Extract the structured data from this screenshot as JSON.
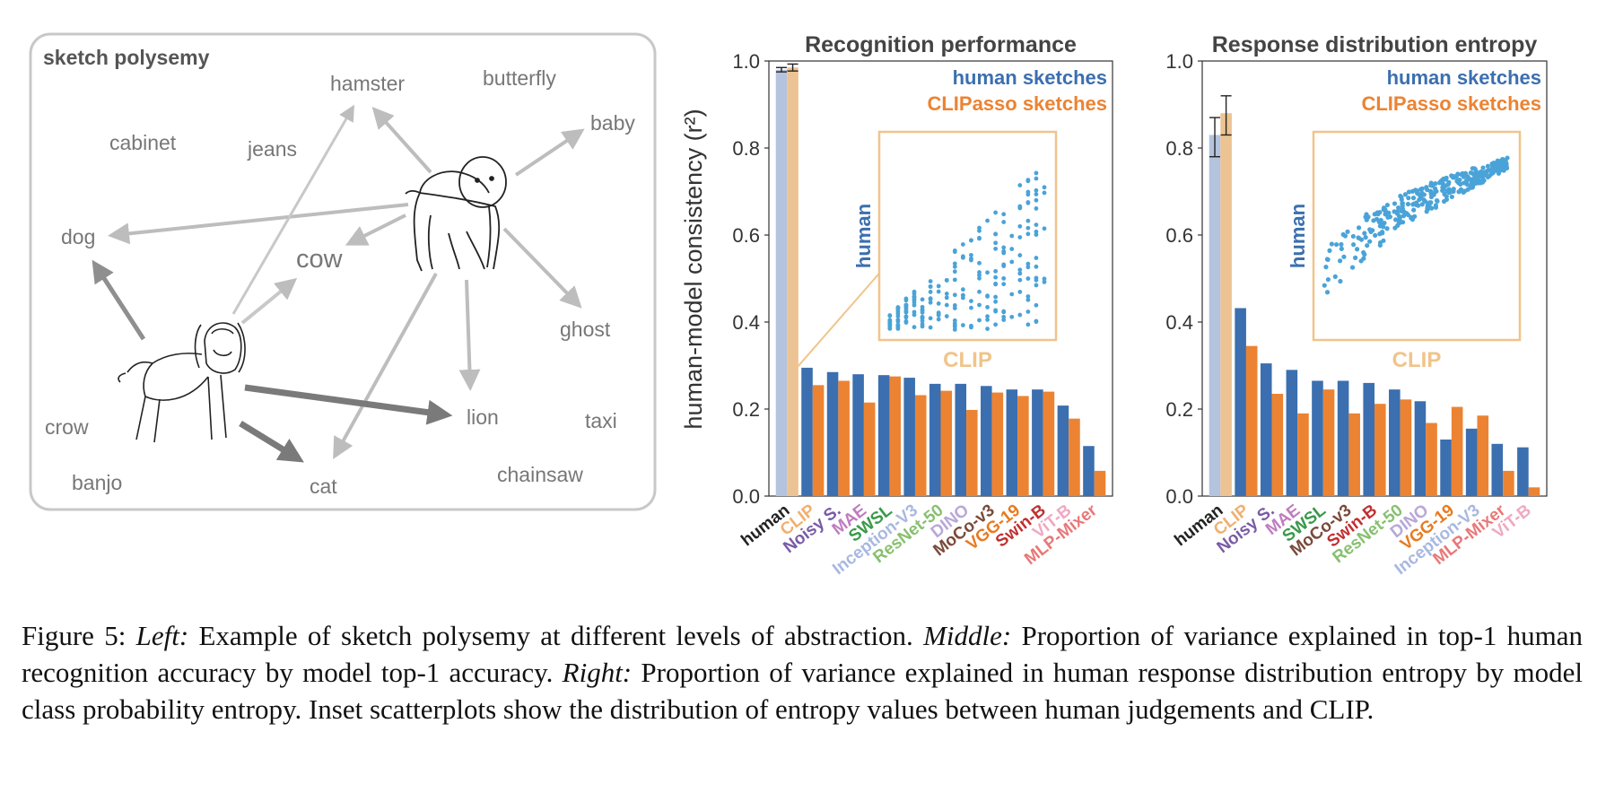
{
  "figure_label": "Figure 5:",
  "caption_parts": [
    {
      "text": "Left:",
      "italic": true
    },
    {
      "text": " Example of sketch polysemy at different levels of abstraction. ",
      "italic": false
    },
    {
      "text": "Middle:",
      "italic": true
    },
    {
      "text": " Proportion of variance explained in top-1 human recognition accuracy by model top-1 accuracy. ",
      "italic": false
    },
    {
      "text": "Right:",
      "italic": true
    },
    {
      "text": " Proportion of variance explained in human response distribution entropy by model class probability entropy. Inset scatterplots show the distribution of entropy values between human judgements and CLIP.",
      "italic": false
    }
  ],
  "left_panel": {
    "title": "sketch polysemy",
    "words": [
      "hamster",
      "butterfly",
      "baby",
      "cabinet",
      "jeans",
      "dog",
      "cow",
      "ghost",
      "lion",
      "taxi",
      "crow",
      "banjo",
      "cat",
      "chainsaw"
    ]
  },
  "colors": {
    "human": "#3b6fb0",
    "clipasso": "#ec8332",
    "human_light": "#b4c3de",
    "clip_light": "#ecc392",
    "scatter": "#4aa3d8",
    "inset_border": "#f0c48a",
    "text_gray": "#777777"
  },
  "shared": {
    "ylabel": "human-model consistency (r²)",
    "yticks": [
      "0.0",
      "0.2",
      "0.4",
      "0.6",
      "0.8",
      "1.0"
    ],
    "legend": [
      "human sketches",
      "CLIPasso sketches"
    ],
    "inset_xlabel": "CLIP",
    "inset_ylabel": "human"
  },
  "chart_data": [
    {
      "type": "bar",
      "title": "Recognition performance",
      "ylabel": "human-model consistency (r²)",
      "ylim": [
        0,
        1.0
      ],
      "categories": [
        "human",
        "CLIP",
        "Noisy S.",
        "MAE",
        "SWSL",
        "Inception-V3",
        "ResNet-50",
        "DINO",
        "MoCo-v3",
        "VGG-19",
        "Swin-B",
        "ViT-B",
        "MLP-Mixer"
      ],
      "category_colors": [
        "#222222",
        "#f0b070",
        "#7a5aa6",
        "#c07cc0",
        "#3a9a4a",
        "#a8b8e0",
        "#88c070",
        "#b8a8d8",
        "#7a4a3a",
        "#e87a20",
        "#c03030",
        "#f0a8c0",
        "#e87878"
      ],
      "series": [
        {
          "name": "human sketches",
          "values": [
            0.98,
            0.295,
            0.285,
            0.28,
            0.278,
            0.272,
            0.258,
            0.258,
            0.253,
            0.245,
            0.245,
            0.208,
            0.115
          ]
        },
        {
          "name": "CLIPasso sketches",
          "values": [
            0.985,
            0.255,
            0.265,
            0.215,
            0.275,
            0.232,
            0.242,
            0.198,
            0.238,
            0.23,
            0.24,
            0.178,
            0.058
          ]
        }
      ],
      "error_bars": {
        "human": [
          0.975,
          0.985
        ],
        "CLIPasso": [
          0.977,
          0.993
        ]
      }
    },
    {
      "type": "bar",
      "title": "Response distribution entropy",
      "ylim": [
        0,
        1.0
      ],
      "categories": [
        "human",
        "CLIP",
        "Noisy S.",
        "MAE",
        "SWSL",
        "MoCo-v3",
        "Swin-B",
        "ResNet-50",
        "DINO",
        "VGG-19",
        "Inception-V3",
        "MLP-Mixer",
        "ViT-B"
      ],
      "category_colors": [
        "#222222",
        "#f0b070",
        "#7a5aa6",
        "#c07cc0",
        "#3a9a4a",
        "#7a4a3a",
        "#c03030",
        "#88c070",
        "#b8a8d8",
        "#e87a20",
        "#a8b8e0",
        "#e87878",
        "#f0a8c0"
      ],
      "series": [
        {
          "name": "human sketches",
          "values": [
            0.83,
            0.432,
            0.305,
            0.29,
            0.265,
            0.265,
            0.26,
            0.245,
            0.218,
            0.13,
            0.155,
            0.12,
            0.112
          ]
        },
        {
          "name": "CLIPasso sketches",
          "values": [
            0.88,
            0.345,
            0.235,
            0.19,
            0.245,
            0.19,
            0.212,
            0.222,
            0.168,
            0.205,
            0.185,
            0.058,
            0.02
          ]
        }
      ],
      "error_bars": {
        "human": [
          0.78,
          0.87
        ],
        "CLIPasso": [
          0.83,
          0.92
        ]
      }
    }
  ]
}
